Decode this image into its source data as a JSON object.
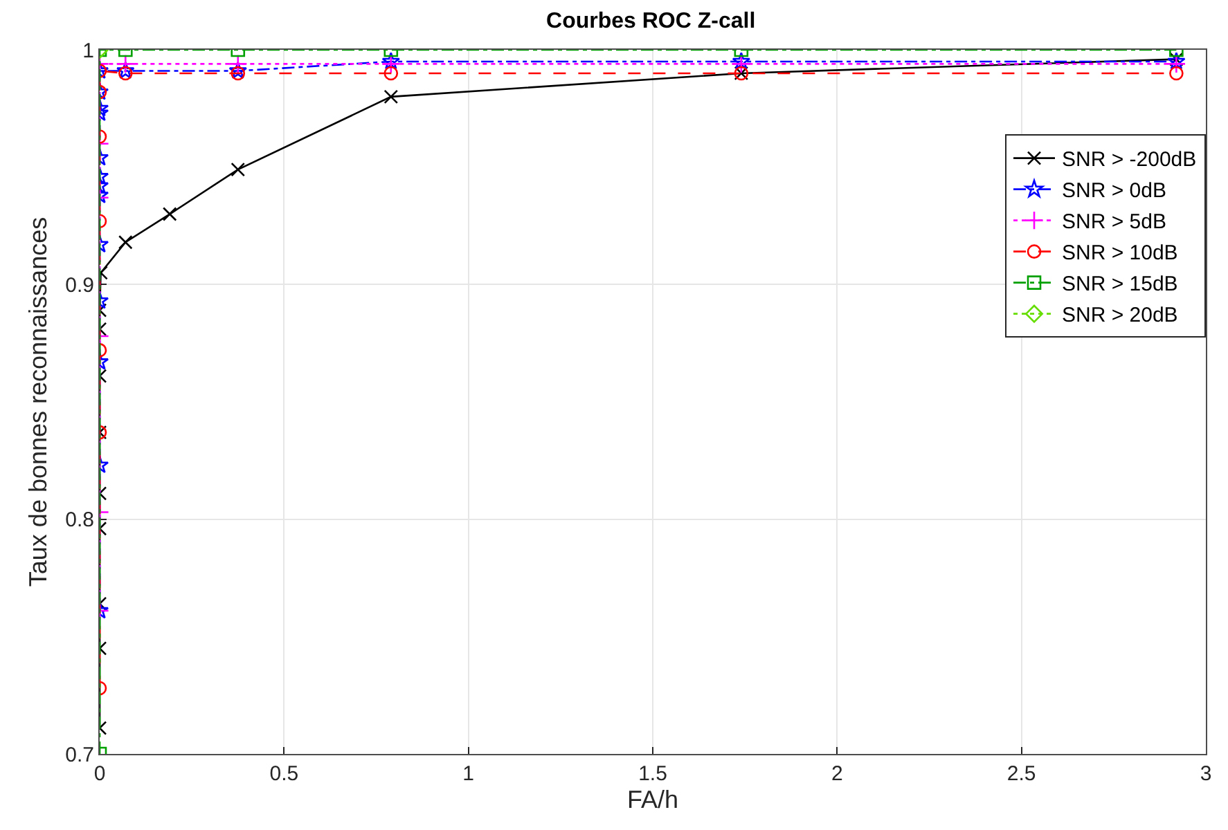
{
  "chart_data": {
    "type": "line",
    "title": "Courbes ROC Z-call",
    "xlabel": "FA/h",
    "ylabel": "Taux de bonnes reconnaissances",
    "xlim": [
      0,
      3
    ],
    "xticks": [
      0,
      0.5,
      1,
      1.5,
      2,
      2.5,
      3
    ],
    "ylim": [
      0.7,
      1
    ],
    "yticks": [
      0.7,
      0.8,
      0.9,
      1
    ],
    "grid": true,
    "legend": "top right",
    "series": [
      {
        "name": "SNR > -200dB",
        "color": "#000000",
        "marker": "x",
        "line_style": "solid",
        "x": [
          0,
          0,
          0,
          0,
          0,
          0,
          0,
          0,
          0,
          0.003,
          0.07,
          0.19,
          0.375,
          0.79,
          1.74,
          2.92
        ],
        "values": [
          0.711,
          0.745,
          0.764,
          0.796,
          0.811,
          0.837,
          0.861,
          0.881,
          0.889,
          0.905,
          0.918,
          0.93,
          0.949,
          0.98,
          0.99,
          0.996
        ]
      },
      {
        "name": "SNR > 0dB",
        "color": "#0000ff",
        "marker": "star",
        "line_style": "dashdot",
        "x": [
          0,
          0,
          0,
          0,
          0,
          0,
          0,
          0,
          0,
          0,
          0,
          0,
          0,
          0.07,
          0.375,
          0.79,
          1.74,
          2.92
        ],
        "values": [
          0.761,
          0.823,
          0.867,
          0.893,
          0.917,
          0.938,
          0.942,
          0.946,
          0.954,
          0.973,
          0.975,
          0.982,
          0.991,
          0.991,
          0.991,
          0.995,
          0.995,
          0.995
        ]
      },
      {
        "name": "SNR > 5dB",
        "color": "#ff00ff",
        "marker": "cross",
        "line_style": "dotted",
        "x": [
          0,
          0,
          0,
          0,
          0,
          0,
          0.07,
          0.375,
          0.79,
          1.74,
          2.92
        ],
        "values": [
          0.761,
          0.803,
          0.878,
          0.937,
          0.96,
          0.994,
          0.994,
          0.994,
          0.994,
          0.994,
          0.994
        ]
      },
      {
        "name": "SNR > 10dB",
        "color": "#ff0000",
        "marker": "circle",
        "line_style": "dashed",
        "x": [
          0,
          0,
          0,
          0,
          0,
          0,
          0,
          0.07,
          0.375,
          0.79,
          1.74,
          2.92
        ],
        "values": [
          0.728,
          0.837,
          0.872,
          0.927,
          0.963,
          0.982,
          0.991,
          0.99,
          0.99,
          0.99,
          0.99,
          0.99
        ]
      },
      {
        "name": "SNR > 15dB",
        "color": "#00a000",
        "marker": "square",
        "line_style": "dashdot",
        "x": [
          0,
          0,
          0.07,
          0.375,
          0.79,
          1.74,
          2.92
        ],
        "values": [
          0.7,
          1,
          1,
          1,
          1,
          1,
          1
        ]
      },
      {
        "name": "SNR > 20dB",
        "color": "#66dd00",
        "marker": "diamond",
        "line_style": "dotted",
        "x": [
          0
        ],
        "values": [
          1
        ]
      }
    ]
  }
}
